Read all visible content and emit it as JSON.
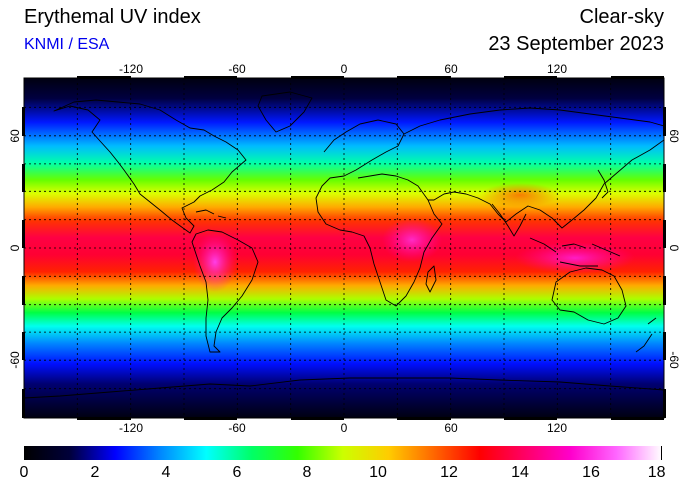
{
  "header": {
    "title": "Erythemal UV index",
    "credit": "KNMI / ESA",
    "mode": "Clear-sky",
    "date": "23 September 2023"
  },
  "map": {
    "lon_ticks": [
      "-120",
      "-60",
      "0",
      "60",
      "120"
    ],
    "lat_ticks": [
      "60",
      "0",
      "-60"
    ],
    "lon_range": [
      -180,
      180
    ],
    "lat_range": [
      -90,
      90
    ],
    "gridlines": "dotted",
    "coastlines": true,
    "colors": {
      "coastline": "#000000",
      "gridline": "#000000",
      "frame": "#000000"
    }
  },
  "colorbar": {
    "labels": [
      "0",
      "2",
      "4",
      "6",
      "8",
      "10",
      "12",
      "14",
      "16",
      "18"
    ],
    "range": [
      0,
      18
    ],
    "colors": [
      "#000000",
      "#00003a",
      "#0000ff",
      "#0088ff",
      "#00ffff",
      "#00ff66",
      "#33ff00",
      "#ccff00",
      "#ffcc00",
      "#ff6600",
      "#ff0000",
      "#ff0066",
      "#ff00cc",
      "#ff66ff",
      "#ffffff"
    ]
  }
}
